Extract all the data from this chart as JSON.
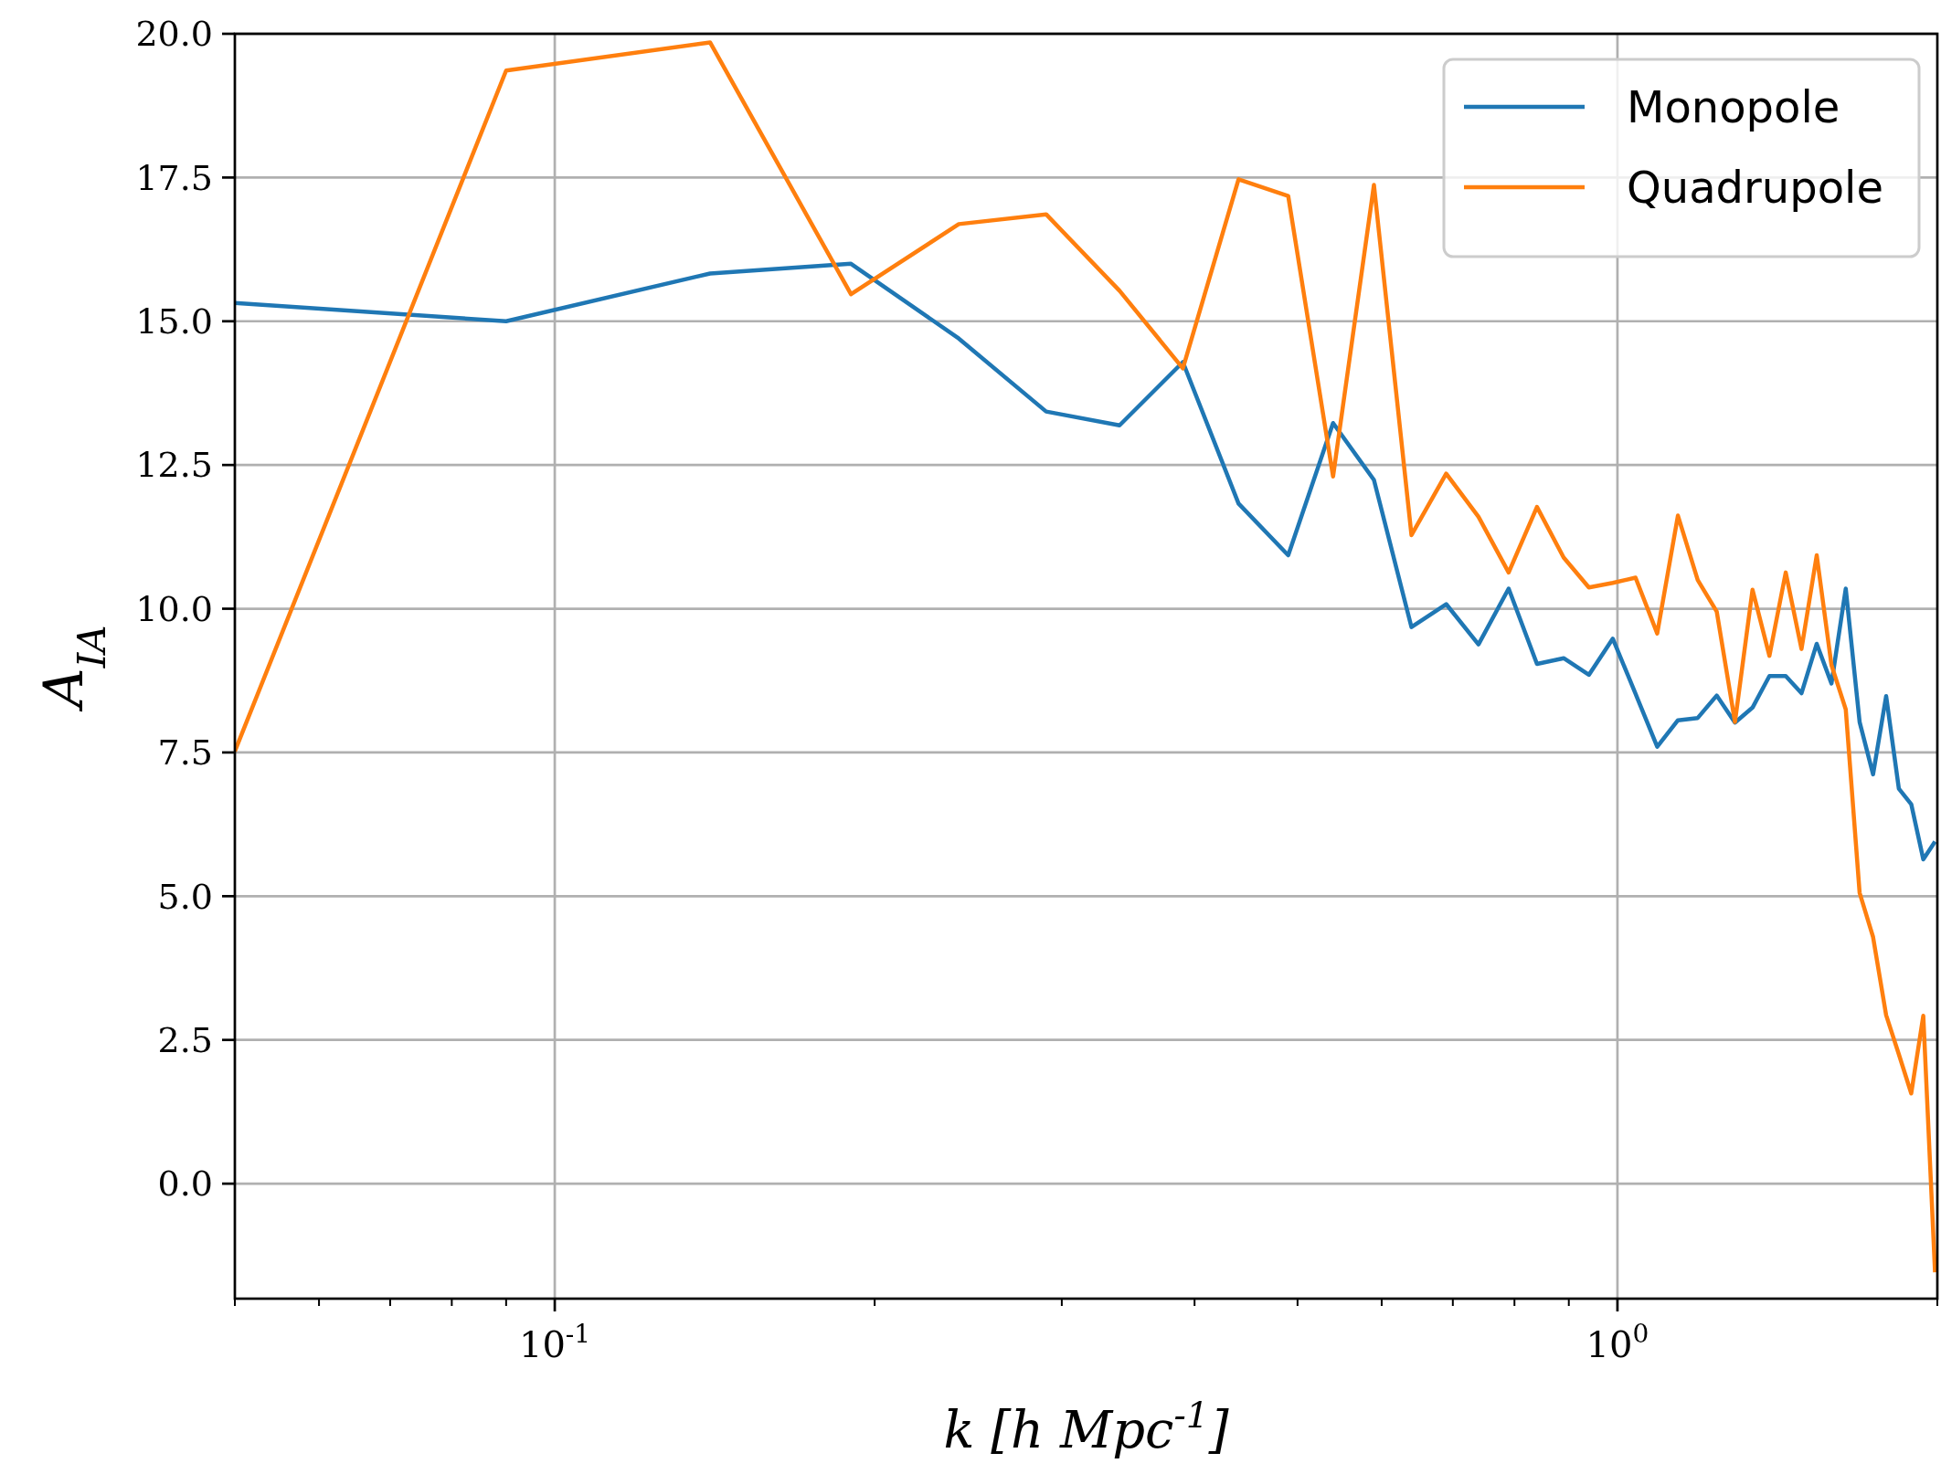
{
  "chart_data": {
    "type": "line",
    "xlabel": "k [h Mpc$^{-1}$]",
    "ylabel": "A$_{IA}$",
    "log": "x",
    "grid": true,
    "legend": "top right",
    "line_style": "solid",
    "marker": "none",
    "xlim": [
      0.05,
      2.0
    ],
    "xticks": [
      {
        "value": 0.05,
        "label": null
      },
      {
        "value": 0.06,
        "label": null
      },
      {
        "value": 0.07,
        "label": null
      },
      {
        "value": 0.08,
        "label": null
      },
      {
        "value": 0.09,
        "label": null
      },
      {
        "value": 0.1,
        "label": "10$^{-1}$"
      },
      {
        "value": 0.2,
        "label": null
      },
      {
        "value": 0.3,
        "label": null
      },
      {
        "value": 0.4,
        "label": null
      },
      {
        "value": 0.5,
        "label": null
      },
      {
        "value": 0.6,
        "label": null
      },
      {
        "value": 0.7,
        "label": null
      },
      {
        "value": 0.8,
        "label": null
      },
      {
        "value": 0.9,
        "label": null
      },
      {
        "value": 1,
        "label": "10$^{0}$"
      },
      {
        "value": 2,
        "label": null
      }
    ],
    "ylim": [
      -2,
      20
    ],
    "yticks": [
      {
        "value": 0,
        "label": "0.0"
      },
      {
        "value": 2.5,
        "label": "2.5"
      },
      {
        "value": 5,
        "label": "5.0"
      },
      {
        "value": 7.5,
        "label": "7.5"
      },
      {
        "value": 10,
        "label": "10.0"
      },
      {
        "value": 12.5,
        "label": "12.5"
      },
      {
        "value": 15,
        "label": "15.0"
      },
      {
        "value": 17.5,
        "label": "17.5"
      },
      {
        "value": 20,
        "label": "20.0"
      }
    ],
    "x": [
      0.05,
      0.09,
      0.14,
      0.19,
      0.24,
      0.29,
      0.34,
      0.39,
      0.44,
      0.49,
      0.54,
      0.59,
      0.64,
      0.69,
      0.74,
      0.79,
      0.84,
      0.89,
      0.94,
      0.99,
      1.04,
      1.09,
      1.14,
      1.19,
      1.24,
      1.29,
      1.34,
      1.39,
      1.44,
      1.49,
      1.54,
      1.59,
      1.64,
      1.69,
      1.74,
      1.79,
      1.84,
      1.89,
      1.94,
      1.99
    ],
    "series": [
      {
        "name": "Monopole",
        "color": "#1f77b4",
        "values": [
          15.32,
          15.0,
          15.83,
          16.0,
          14.7,
          13.43,
          13.19,
          14.29,
          11.83,
          10.93,
          13.23,
          12.24,
          9.68,
          10.08,
          9.38,
          10.35,
          9.04,
          9.14,
          8.85,
          9.48,
          8.52,
          7.6,
          8.06,
          8.1,
          8.49,
          8.02,
          8.28,
          8.83,
          8.83,
          8.53,
          9.39,
          8.7,
          10.35,
          8.03,
          7.12,
          8.48,
          6.87,
          6.6,
          5.64,
          5.95
        ]
      },
      {
        "name": "Quadrupole",
        "color": "#ff7f0e",
        "values": [
          7.52,
          19.36,
          19.85,
          15.47,
          16.69,
          16.86,
          15.53,
          14.18,
          17.47,
          17.18,
          12.3,
          17.37,
          11.28,
          12.35,
          11.6,
          10.63,
          11.77,
          10.89,
          10.37,
          10.45,
          10.54,
          9.57,
          11.62,
          10.5,
          9.95,
          8.03,
          10.33,
          9.18,
          10.63,
          9.3,
          10.93,
          9.02,
          8.25,
          5.06,
          4.29,
          2.93,
          2.25,
          1.57,
          2.92,
          -1.54
        ]
      }
    ]
  }
}
